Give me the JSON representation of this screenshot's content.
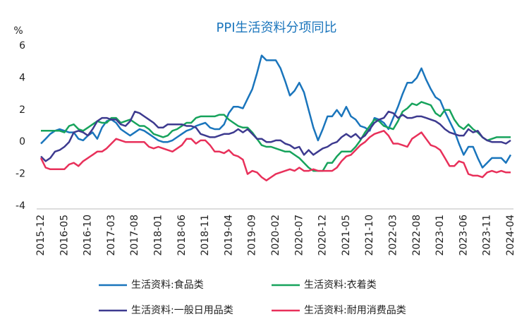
{
  "chart_data": {
    "type": "line",
    "title": "PPI生活资料分项同比",
    "y_label": "%",
    "categories": [
      "2015-12",
      null,
      null,
      null,
      null,
      "2016-05",
      null,
      null,
      null,
      null,
      "2016-10",
      null,
      null,
      null,
      null,
      "2017-03",
      null,
      null,
      null,
      null,
      "2017-08",
      null,
      null,
      null,
      null,
      "2018-01",
      null,
      null,
      null,
      null,
      "2018-06",
      null,
      null,
      null,
      null,
      "2018-11",
      null,
      null,
      null,
      null,
      "2019-04",
      null,
      null,
      null,
      null,
      "2019-09",
      null,
      null,
      null,
      null,
      "2020-02",
      null,
      null,
      null,
      null,
      "2020-07",
      null,
      null,
      null,
      null,
      "2020-12",
      null,
      null,
      null,
      null,
      "2021-05",
      null,
      null,
      null,
      null,
      "2021-10",
      null,
      null,
      null,
      null,
      "2022-03",
      null,
      null,
      null,
      null,
      "2022-08",
      null,
      null,
      null,
      null,
      "2023-01",
      null,
      null,
      null,
      null,
      "2023-06",
      null,
      null,
      null,
      null,
      "2023-11",
      null,
      null,
      null,
      null,
      "2024-04"
    ],
    "series": [
      {
        "name": "生活资料:食品类",
        "color": "#1a75bc",
        "values": [
          -0.1,
          0.2,
          0.5,
          0.7,
          0.8,
          0.7,
          0.6,
          0.6,
          0.2,
          0.1,
          0.4,
          0.6,
          0.2,
          0.9,
          1.3,
          1.4,
          1.2,
          0.8,
          0.6,
          0.4,
          0.6,
          0.8,
          0.7,
          0.5,
          0.3,
          0.1,
          0.0,
          0.0,
          0.1,
          0.3,
          0.5,
          0.7,
          0.8,
          1.0,
          1.1,
          1.2,
          0.9,
          0.8,
          0.8,
          1.1,
          1.8,
          2.2,
          2.2,
          2.1,
          2.7,
          3.3,
          4.3,
          5.4,
          5.1,
          5.1,
          5.1,
          4.6,
          3.8,
          2.9,
          3.2,
          3.7,
          3.1,
          2.0,
          0.9,
          0.1,
          0.8,
          1.6,
          1.6,
          2.0,
          1.6,
          2.2,
          1.6,
          1.4,
          1.0,
          0.9,
          0.7,
          1.5,
          1.4,
          1.2,
          0.8,
          1.5,
          2.2,
          3.0,
          3.7,
          3.7,
          4.0,
          4.6,
          3.9,
          3.3,
          2.8,
          2.6,
          1.9,
          1.3,
          0.7,
          -0.1,
          -0.8,
          -0.3,
          -0.3,
          -1.0,
          -1.6,
          -1.3,
          -1.0,
          -1.0,
          -1.0,
          -1.3,
          -0.8
        ]
      },
      {
        "name": "生活资料:衣着类",
        "color": "#17a35c",
        "values": [
          0.7,
          0.7,
          0.7,
          0.7,
          0.7,
          0.6,
          1.0,
          1.1,
          0.8,
          0.7,
          0.9,
          1.1,
          1.3,
          1.2,
          1.2,
          1.5,
          1.5,
          1.2,
          1.3,
          1.4,
          1.2,
          1.0,
          1.0,
          0.8,
          0.5,
          0.4,
          0.3,
          0.4,
          0.7,
          0.8,
          1.0,
          1.2,
          1.2,
          1.5,
          1.6,
          1.6,
          1.6,
          1.6,
          1.7,
          1.7,
          1.4,
          1.2,
          1.0,
          0.9,
          0.9,
          0.6,
          0.2,
          -0.2,
          -0.3,
          -0.3,
          -0.4,
          -0.5,
          -0.6,
          -0.6,
          -0.8,
          -1.0,
          -1.3,
          -1.6,
          -1.8,
          -1.8,
          -1.8,
          -1.3,
          -1.3,
          -0.9,
          -0.6,
          -0.6,
          -0.6,
          -0.3,
          0.1,
          0.6,
          1.0,
          1.4,
          1.3,
          1.0,
          0.9,
          0.8,
          1.3,
          1.9,
          2.1,
          2.4,
          2.3,
          2.5,
          2.4,
          2.3,
          1.8,
          1.6,
          2.0,
          2.0,
          1.4,
          1.0,
          0.8,
          1.1,
          0.8,
          0.6,
          0.3,
          0.1,
          0.2,
          0.3,
          0.3,
          0.3,
          0.3
        ]
      },
      {
        "name": "生活资料:一般日用品类",
        "color": "#3d3a8f",
        "values": [
          -0.9,
          -1.2,
          -1.0,
          -0.6,
          -0.5,
          -0.3,
          0.0,
          0.6,
          0.7,
          0.6,
          0.4,
          0.8,
          1.3,
          1.5,
          1.5,
          1.4,
          1.4,
          1.1,
          1.0,
          1.3,
          1.9,
          1.8,
          1.6,
          1.4,
          1.2,
          0.9,
          0.9,
          1.1,
          1.1,
          1.1,
          1.1,
          1.0,
          1.0,
          0.9,
          0.5,
          0.4,
          0.3,
          0.3,
          0.4,
          0.5,
          0.5,
          0.6,
          0.8,
          0.6,
          0.8,
          0.5,
          0.2,
          0.2,
          0.0,
          0.0,
          0.1,
          0.1,
          -0.1,
          -0.2,
          -0.4,
          -0.3,
          -0.8,
          -0.5,
          -0.8,
          -0.6,
          -0.4,
          -0.3,
          -0.1,
          0.0,
          0.3,
          0.5,
          0.3,
          0.5,
          0.2,
          0.4,
          0.8,
          1.2,
          1.4,
          1.5,
          1.9,
          1.8,
          1.5,
          1.7,
          1.5,
          1.5,
          1.6,
          1.6,
          1.5,
          1.4,
          1.3,
          1.1,
          0.8,
          0.6,
          0.5,
          0.4,
          0.4,
          0.8,
          0.6,
          0.7,
          0.3,
          0.1,
          0.0,
          0.0,
          0.0,
          -0.1,
          0.1
        ]
      },
      {
        "name": "生活资料:耐用消费品类",
        "color": "#e8305a",
        "values": [
          -1.0,
          -1.6,
          -1.7,
          -1.7,
          -1.7,
          -1.7,
          -1.4,
          -1.3,
          -1.5,
          -1.2,
          -1.0,
          -0.8,
          -0.6,
          -0.6,
          -0.4,
          -0.1,
          0.2,
          0.1,
          0.0,
          0.0,
          0.0,
          0.0,
          0.0,
          -0.3,
          -0.4,
          -0.3,
          -0.4,
          -0.5,
          -0.6,
          -0.4,
          -0.2,
          0.2,
          0.2,
          -0.1,
          0.1,
          0.1,
          -0.2,
          -0.6,
          -0.6,
          -0.7,
          -0.5,
          -0.8,
          -0.9,
          -1.1,
          -2.0,
          -1.8,
          -1.9,
          -2.2,
          -2.4,
          -2.2,
          -2.0,
          -1.9,
          -1.8,
          -1.7,
          -1.8,
          -1.6,
          -1.8,
          -1.8,
          -1.7,
          -1.8,
          -1.8,
          -1.8,
          -1.8,
          -1.6,
          -1.2,
          -0.9,
          -0.8,
          -0.5,
          -0.2,
          0.0,
          0.3,
          0.5,
          0.6,
          0.7,
          0.4,
          -0.1,
          -0.1,
          -0.2,
          -0.3,
          0.2,
          0.4,
          0.6,
          0.2,
          -0.2,
          -0.3,
          -0.5,
          -1.0,
          -1.5,
          -1.5,
          -1.2,
          -1.3,
          -2.0,
          -2.1,
          -2.1,
          -2.2,
          -1.9,
          -1.8,
          -1.9,
          -1.8,
          -1.9,
          -1.9
        ]
      }
    ],
    "ylim": [
      -4,
      6
    ],
    "yticks": [
      -4,
      -2,
      0,
      2,
      4,
      6
    ],
    "grid": false,
    "legend": "bottom"
  }
}
